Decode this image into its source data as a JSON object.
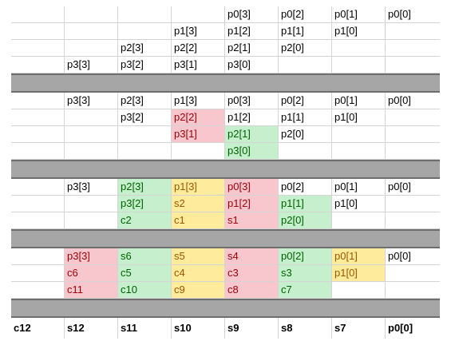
{
  "columns": 8,
  "colors": {
    "red_fill": "#f8c7ce",
    "red_text": "#9c0006",
    "green_fill": "#c6efce",
    "green_text": "#006100",
    "yellow_fill": "#ffeb9c",
    "yellow_text": "#9c5700",
    "band": "#a6a6a6"
  },
  "rows": [
    {
      "type": "data",
      "cells": [
        {
          "t": ""
        },
        {
          "t": ""
        },
        {
          "t": ""
        },
        {
          "t": ""
        },
        {
          "t": "p0[3]"
        },
        {
          "t": "p0[2]"
        },
        {
          "t": "p0[1]"
        },
        {
          "t": "p0[0]"
        }
      ]
    },
    {
      "type": "data",
      "cells": [
        {
          "t": ""
        },
        {
          "t": ""
        },
        {
          "t": ""
        },
        {
          "t": "p1[3]"
        },
        {
          "t": "p1[2]"
        },
        {
          "t": "p1[1]"
        },
        {
          "t": "p1[0]"
        },
        {
          "t": ""
        }
      ]
    },
    {
      "type": "data",
      "cells": [
        {
          "t": ""
        },
        {
          "t": ""
        },
        {
          "t": "p2[3]"
        },
        {
          "t": "p2[2]"
        },
        {
          "t": "p2[1]"
        },
        {
          "t": "p2[0]"
        },
        {
          "t": ""
        },
        {
          "t": ""
        }
      ]
    },
    {
      "type": "data",
      "cells": [
        {
          "t": ""
        },
        {
          "t": "p3[3]"
        },
        {
          "t": "p3[2]"
        },
        {
          "t": "p3[1]"
        },
        {
          "t": "p3[0]"
        },
        {
          "t": ""
        },
        {
          "t": ""
        },
        {
          "t": ""
        }
      ]
    },
    {
      "type": "band"
    },
    {
      "type": "data",
      "cells": [
        {
          "t": ""
        },
        {
          "t": "p3[3]"
        },
        {
          "t": "p2[3]"
        },
        {
          "t": "p1[3]"
        },
        {
          "t": "p0[3]"
        },
        {
          "t": "p0[2]"
        },
        {
          "t": "p0[1]"
        },
        {
          "t": "p0[0]"
        }
      ]
    },
    {
      "type": "data",
      "cells": [
        {
          "t": ""
        },
        {
          "t": ""
        },
        {
          "t": "p3[2]"
        },
        {
          "t": "p2[2]",
          "c": "red"
        },
        {
          "t": "p1[2]"
        },
        {
          "t": "p1[1]"
        },
        {
          "t": "p1[0]"
        },
        {
          "t": ""
        }
      ]
    },
    {
      "type": "data",
      "cells": [
        {
          "t": ""
        },
        {
          "t": ""
        },
        {
          "t": ""
        },
        {
          "t": "p3[1]",
          "c": "red"
        },
        {
          "t": "p2[1]",
          "c": "green"
        },
        {
          "t": "p2[0]"
        },
        {
          "t": ""
        },
        {
          "t": ""
        }
      ]
    },
    {
      "type": "data",
      "cells": [
        {
          "t": ""
        },
        {
          "t": ""
        },
        {
          "t": ""
        },
        {
          "t": ""
        },
        {
          "t": "p3[0]",
          "c": "green"
        },
        {
          "t": ""
        },
        {
          "t": ""
        },
        {
          "t": ""
        }
      ]
    },
    {
      "type": "band"
    },
    {
      "type": "data",
      "cells": [
        {
          "t": ""
        },
        {
          "t": "p3[3]"
        },
        {
          "t": "p2[3]",
          "c": "green"
        },
        {
          "t": "p1[3]",
          "c": "yellow"
        },
        {
          "t": "p0[3]",
          "c": "red"
        },
        {
          "t": "p0[2]"
        },
        {
          "t": "p0[1]"
        },
        {
          "t": "p0[0]"
        }
      ]
    },
    {
      "type": "data",
      "cells": [
        {
          "t": ""
        },
        {
          "t": ""
        },
        {
          "t": "p3[2]",
          "c": "green"
        },
        {
          "t": "s2",
          "c": "yellow"
        },
        {
          "t": "p1[2]",
          "c": "red"
        },
        {
          "t": "p1[1]",
          "c": "green"
        },
        {
          "t": "p1[0]"
        },
        {
          "t": ""
        }
      ]
    },
    {
      "type": "data",
      "cells": [
        {
          "t": ""
        },
        {
          "t": ""
        },
        {
          "t": "c2",
          "c": "green"
        },
        {
          "t": "c1",
          "c": "yellow"
        },
        {
          "t": "s1",
          "c": "red"
        },
        {
          "t": "p2[0]",
          "c": "green"
        },
        {
          "t": ""
        },
        {
          "t": ""
        }
      ]
    },
    {
      "type": "band"
    },
    {
      "type": "data",
      "cells": [
        {
          "t": ""
        },
        {
          "t": "p3[3]",
          "c": "red"
        },
        {
          "t": "s6",
          "c": "green"
        },
        {
          "t": "s5",
          "c": "yellow"
        },
        {
          "t": "s4",
          "c": "red"
        },
        {
          "t": "p0[2]",
          "c": "green"
        },
        {
          "t": "p0[1]",
          "c": "yellow"
        },
        {
          "t": "p0[0]"
        }
      ]
    },
    {
      "type": "data",
      "cells": [
        {
          "t": ""
        },
        {
          "t": "c6",
          "c": "red"
        },
        {
          "t": "c5",
          "c": "green"
        },
        {
          "t": "c4",
          "c": "yellow"
        },
        {
          "t": "c3",
          "c": "red"
        },
        {
          "t": "s3",
          "c": "green"
        },
        {
          "t": "p1[0]",
          "c": "yellow"
        },
        {
          "t": ""
        }
      ]
    },
    {
      "type": "data",
      "cells": [
        {
          "t": ""
        },
        {
          "t": "c11",
          "c": "red"
        },
        {
          "t": "c10",
          "c": "green"
        },
        {
          "t": "c9",
          "c": "yellow"
        },
        {
          "t": "c8",
          "c": "red"
        },
        {
          "t": "c7",
          "c": "green"
        },
        {
          "t": ""
        },
        {
          "t": ""
        }
      ]
    },
    {
      "type": "band"
    },
    {
      "type": "final",
      "cells": [
        {
          "t": "c12"
        },
        {
          "t": "s12"
        },
        {
          "t": "s11"
        },
        {
          "t": "s10"
        },
        {
          "t": "s9"
        },
        {
          "t": "s8"
        },
        {
          "t": "s7"
        },
        {
          "t": "p0[0]"
        }
      ]
    }
  ]
}
